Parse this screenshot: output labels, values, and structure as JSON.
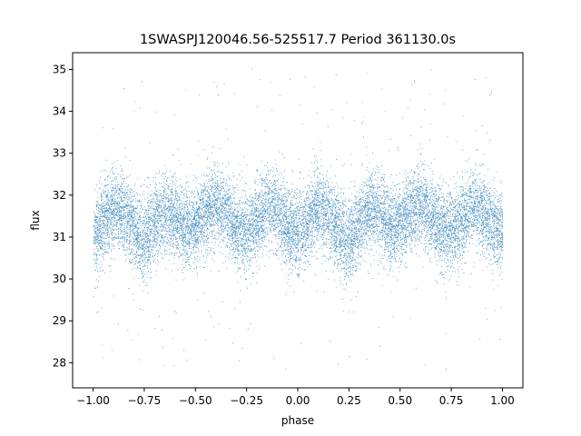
{
  "chart_data": {
    "type": "scatter",
    "title": "1SWASPJ120046.56-525517.7 Period 361130.0s",
    "xlabel": "phase",
    "ylabel": "flux",
    "xlim": [
      -1.1,
      1.1
    ],
    "ylim": [
      27.4,
      35.4
    ],
    "xticks": [
      -1.0,
      -0.75,
      -0.5,
      -0.25,
      0.0,
      0.25,
      0.5,
      0.75,
      1.0
    ],
    "xtick_labels": [
      "−1.00",
      "−0.75",
      "−0.50",
      "−0.25",
      "0.00",
      "0.25",
      "0.50",
      "0.75",
      "1.00"
    ],
    "yticks": [
      28,
      29,
      30,
      31,
      32,
      33,
      34,
      35
    ],
    "ytick_labels": [
      "28",
      "29",
      "30",
      "31",
      "32",
      "33",
      "34",
      "35"
    ],
    "grid": false,
    "marker_color": "#1f77b4",
    "light_curve": {
      "phase": [
        -1.0,
        -0.95,
        -0.9,
        -0.85,
        -0.8,
        -0.75,
        -0.7,
        -0.65,
        -0.6,
        -0.55,
        -0.5,
        -0.45,
        -0.4,
        -0.35,
        -0.3,
        -0.25,
        -0.2,
        -0.15,
        -0.1,
        -0.05,
        0.0,
        0.05,
        0.1,
        0.15,
        0.2,
        0.25,
        0.3,
        0.35,
        0.4,
        0.45,
        0.5,
        0.55,
        0.6,
        0.65,
        0.7,
        0.75,
        0.8,
        0.85,
        0.9,
        0.95,
        1.0
      ],
      "flux_center": [
        31.0,
        31.4,
        31.7,
        31.6,
        31.2,
        30.9,
        31.3,
        31.6,
        31.5,
        31.2,
        31.3,
        31.6,
        31.8,
        31.6,
        31.2,
        31.1,
        31.4,
        31.8,
        31.6,
        31.2,
        31.1,
        31.4,
        31.7,
        31.5,
        31.1,
        30.9,
        31.3,
        31.7,
        31.6,
        31.2,
        31.3,
        31.6,
        31.8,
        31.5,
        31.2,
        31.1,
        31.4,
        31.8,
        31.6,
        31.3,
        31.1
      ],
      "scatter_width": 0.85,
      "n_points": 14000,
      "outlier_fraction": 0.02
    }
  }
}
